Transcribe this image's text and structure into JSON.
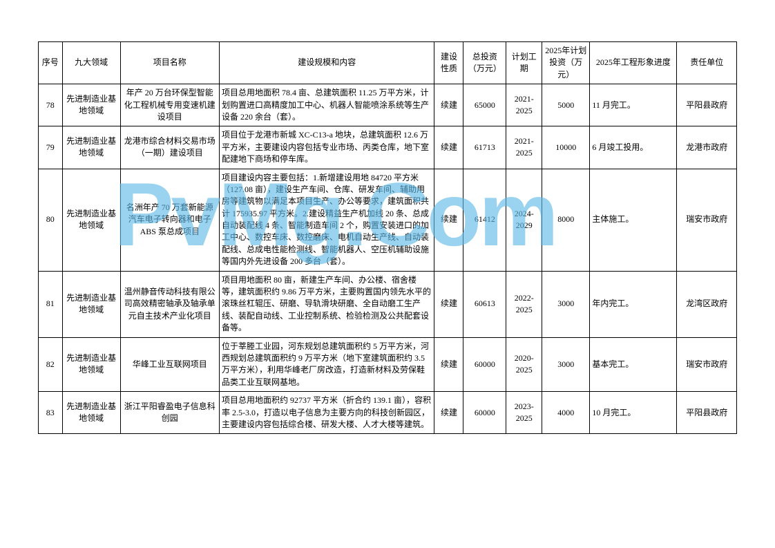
{
  "watermark": "PvMg.Com",
  "columns": [
    "序号",
    "九大领域",
    "项目名称",
    "建设规模和内容",
    "建设性质",
    "总投资（万元）",
    "计划工期",
    "2025年计划投资（万元）",
    "2025年工程形象进度",
    "责任单位"
  ],
  "rows": [
    {
      "seq": "78",
      "field": "先进制造业基地领域",
      "name": "年产 20 万台环保型智能化工程机械专用变速机建设项目",
      "desc": "项目总用地面积 78.4 亩、总建筑面积 11.25 万平方米，计划购置进口高精度加工中心、机器人智能喷涂系统等生产设备 220 余台（套）。",
      "nature": "续建",
      "invest": "65000",
      "period": "2021-2025",
      "plan": "5000",
      "progress": "11 月完工。",
      "resp": "平阳县政府"
    },
    {
      "seq": "79",
      "field": "先进制造业基地领域",
      "name": "龙港市综合材料交易市场（一期）建设项目",
      "desc": "项目位于龙港市新城 XC-C13-a 地块，总建筑面积 12.6 万平方米，主要建设内容包括专业市场、丙类仓库，地下室配建地下商场和停车库。",
      "nature": "续建",
      "invest": "61713",
      "period": "2021-2025",
      "plan": "10000",
      "progress": "6 月竣工投用。",
      "resp": "龙港市政府"
    },
    {
      "seq": "80",
      "field": "先进制造业基地领域",
      "name": "名洲年产 70 万套新能源汽车电子转向器和电子 ABS 泵总成项目",
      "desc": "项目建设内容主要包括：1.新增建设用地 84720 平方米（127.08 亩），建设生产车间、仓库、研发车间、辅助用房等建筑物以满足本项目生产、办公等要求，建筑面积共计 175935.97 平方米。2.建设精益生产机加线 20 条、总成自动装配线 4 条、智能制造车间 2 个，购置安装进口的加工中心、数控车床、数控磨床、电机自动生产线、自动装配线、总成电性能检测线、智能机器人、空压机辅助设施等国内外先进设备 200 多台（套）。",
      "nature": "续建",
      "invest": "61412",
      "period": "2024-2029",
      "plan": "8000",
      "progress": "主体施工。",
      "resp": "瑞安市政府"
    },
    {
      "seq": "81",
      "field": "先进制造业基地领域",
      "name": "温州静音传动科技有限公司高效精密轴承及轴承单元自主技术产业化项目",
      "desc": "项目用地面积 80 亩，新建生产车间、办公楼、宿舍楼等，建筑面积约 9.86 万平方米，主要购置国内领先水平的滚珠丝杠辊压、研磨、导轨滑块研磨、全自动磨工生产线、装配自动线、工业控制系统、检验检测及公共配套设备等。",
      "nature": "续建",
      "invest": "60613",
      "period": "2022-2025",
      "plan": "3000",
      "progress": "年内完工。",
      "resp": "龙湾区政府"
    },
    {
      "seq": "82",
      "field": "先进制造业基地领域",
      "name": "华峰工业互联网项目",
      "desc": "位于莘塍工业园，河东规划总建筑面积约 5 万平方米，河西规划总建筑面积约 9 万平方米（地下室建筑面积约 3.5 万平方米），利用华峰老厂房改造，打造新材料及劳保鞋品类工业互联网基地。",
      "nature": "续建",
      "invest": "60000",
      "period": "2020-2025",
      "plan": "3000",
      "progress": "基本完工。",
      "resp": "瑞安市政府"
    },
    {
      "seq": "83",
      "field": "先进制造业基地领域",
      "name": "浙江平阳睿盈电子信息科创园",
      "desc": "项目总用地面积约 92737 平方米（折合约 139.1 亩），容积率 2.5-3.0，打造以电子信息为主要方向的科技创新园区，主要建设内容包括综合楼、研发大楼、人才大楼等建筑。",
      "nature": "续建",
      "invest": "60000",
      "period": "2023-2025",
      "plan": "4000",
      "progress": "10 月完工。",
      "resp": "平阳县政府"
    }
  ]
}
